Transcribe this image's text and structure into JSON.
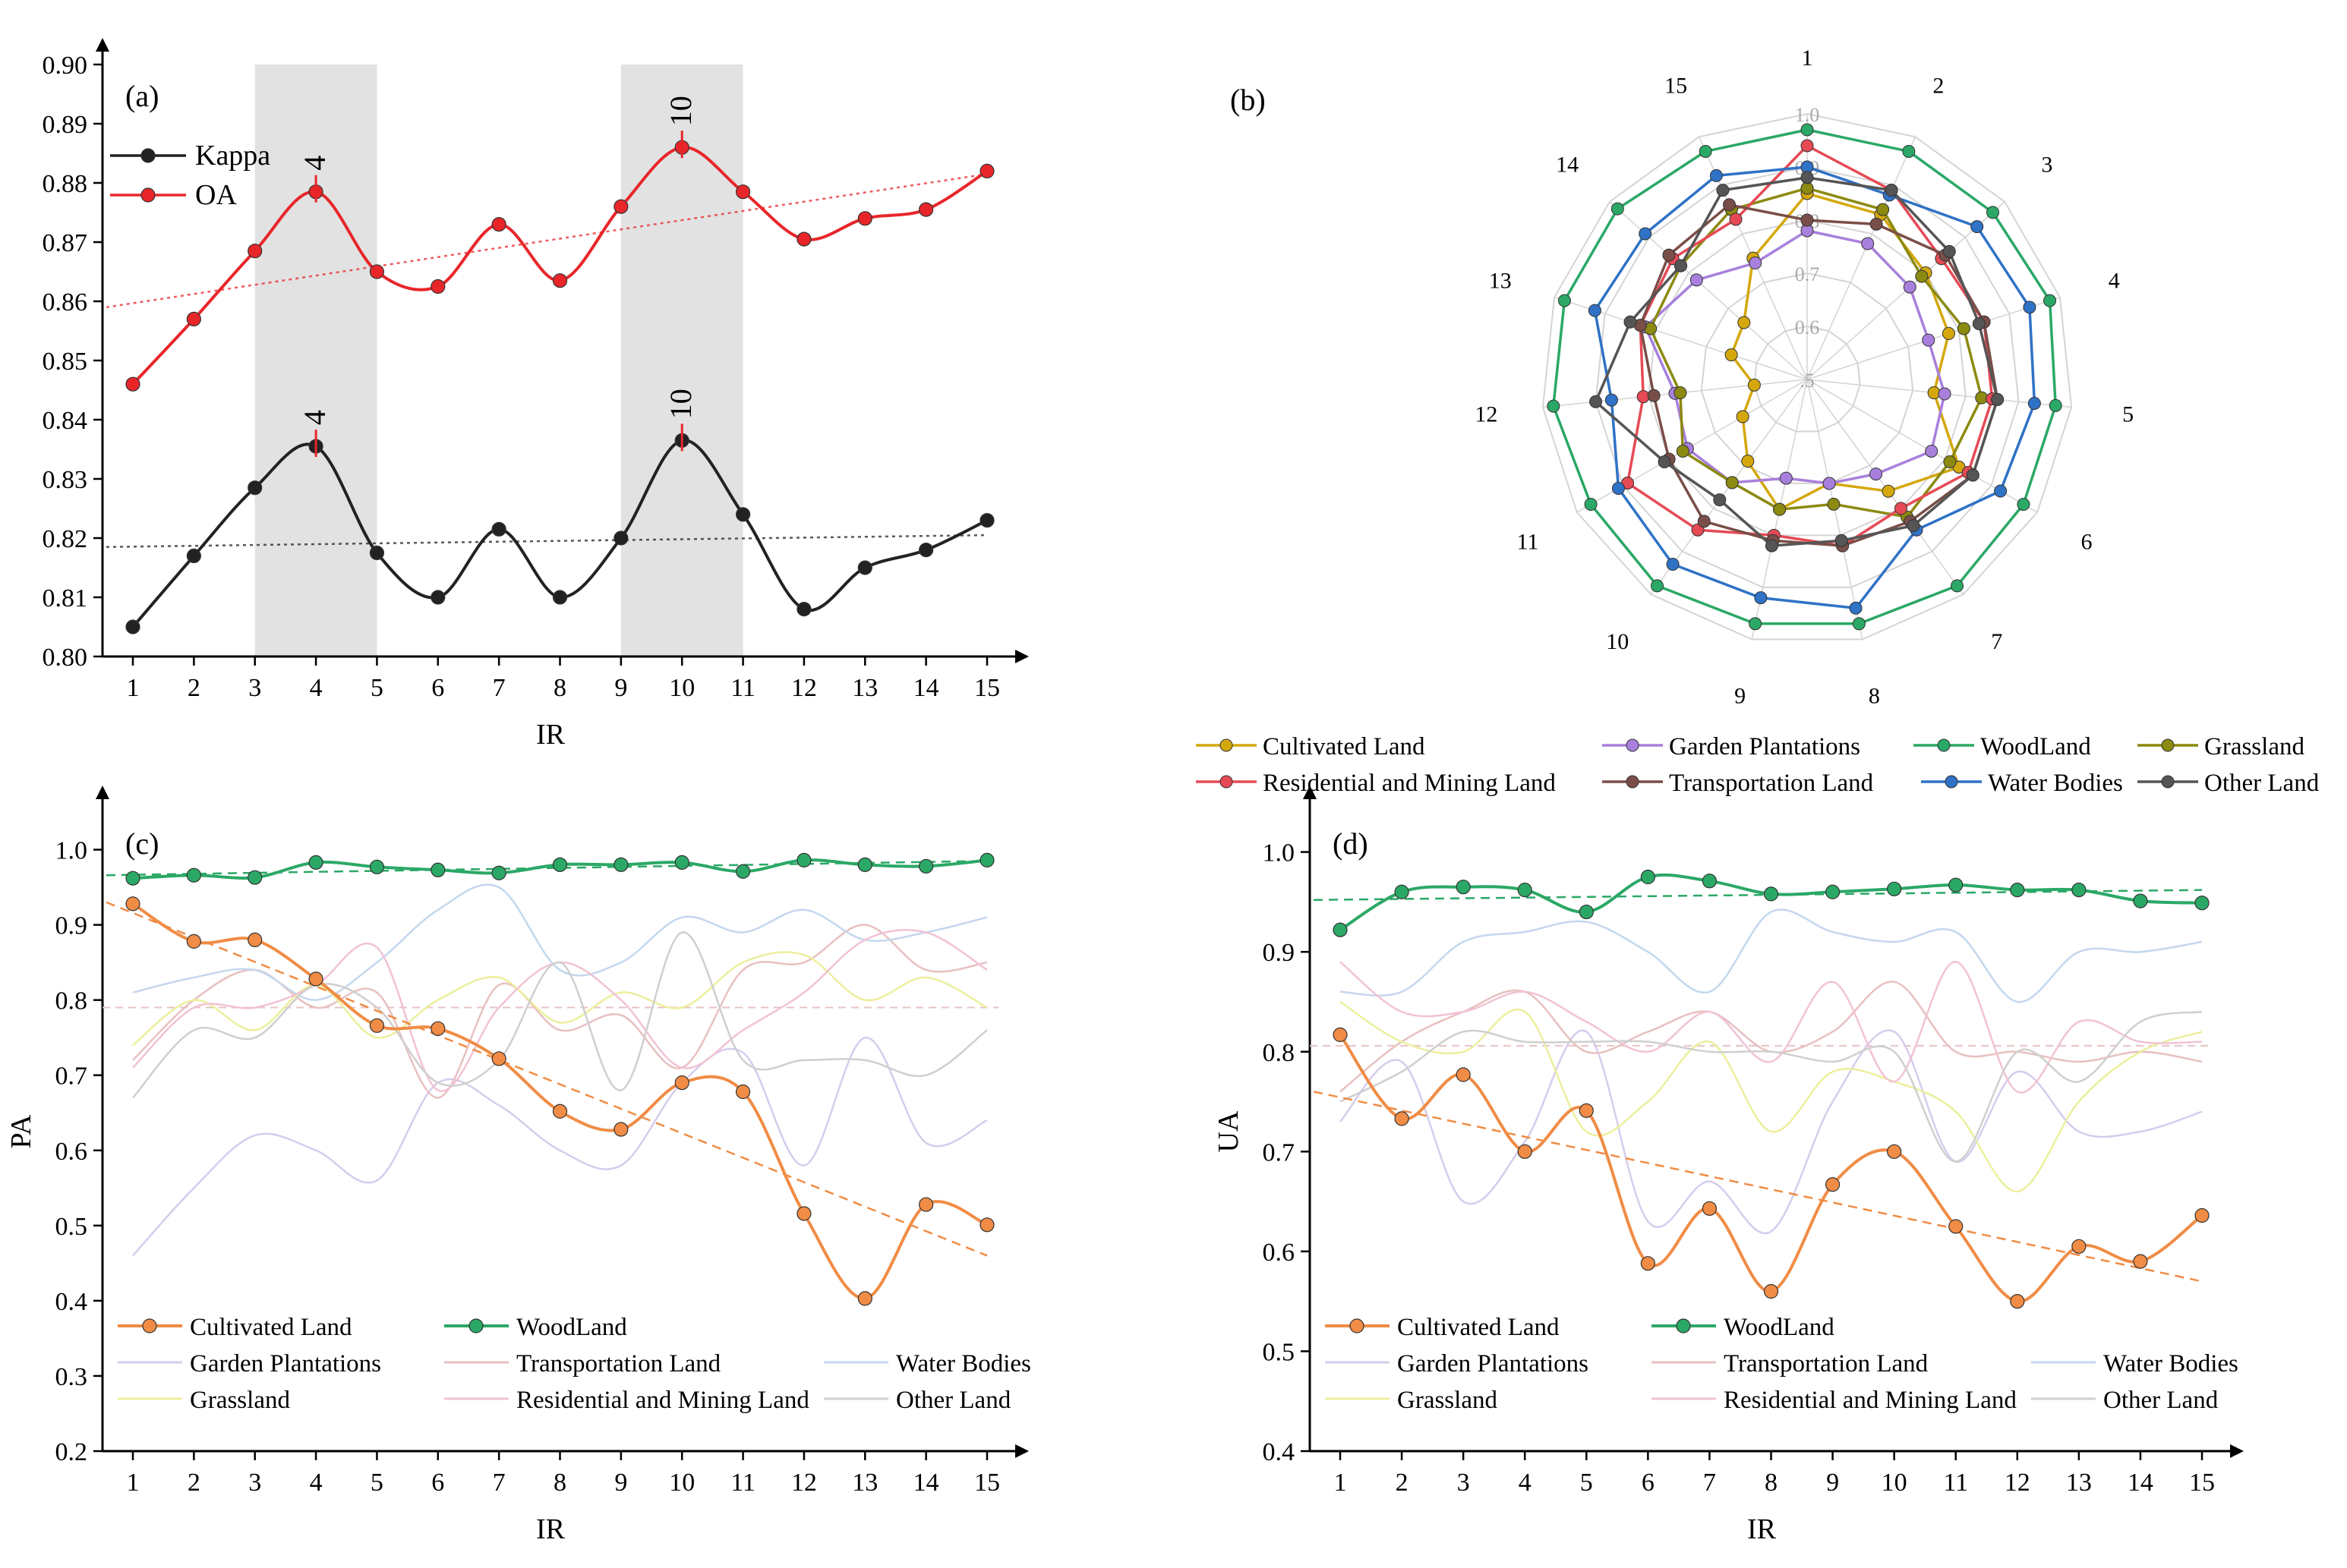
{
  "chart_data": [
    {
      "id": "a",
      "type": "line",
      "panel_label": "(a)",
      "xlabel": "IR",
      "ylabel": "",
      "x": [
        1,
        2,
        3,
        4,
        5,
        6,
        7,
        8,
        9,
        10,
        11,
        12,
        13,
        14,
        15
      ],
      "ylim": [
        0.8,
        0.9
      ],
      "yticks": [
        "0.80",
        "0.81",
        "0.82",
        "0.83",
        "0.84",
        "0.85",
        "0.86",
        "0.87",
        "0.88",
        "0.89",
        "0.90"
      ],
      "shaded_regions": [
        [
          3,
          5
        ],
        [
          9,
          11
        ]
      ],
      "series": [
        {
          "name": "Kappa",
          "color": "#222222",
          "values": [
            0.805,
            0.817,
            0.8285,
            0.8355,
            0.8175,
            0.81,
            0.8215,
            0.81,
            0.82,
            0.8365,
            0.824,
            0.808,
            0.815,
            0.818,
            0.823
          ],
          "trend": [
            0.8185,
            0.8205
          ]
        },
        {
          "name": "OA",
          "color": "#e8262a",
          "values": [
            0.846,
            0.857,
            0.8685,
            0.8785,
            0.865,
            0.8625,
            0.873,
            0.8635,
            0.876,
            0.886,
            0.8785,
            0.8705,
            0.874,
            0.8755,
            0.882
          ],
          "trend": [
            0.859,
            0.8815
          ]
        }
      ],
      "annotations": [
        {
          "series": "OA",
          "x": 4,
          "text": "4"
        },
        {
          "series": "OA",
          "x": 10,
          "text": "10"
        },
        {
          "series": "Kappa",
          "x": 4,
          "text": "4"
        },
        {
          "series": "Kappa",
          "x": 10,
          "text": "10"
        }
      ]
    },
    {
      "id": "b",
      "type": "radar",
      "panel_label": "(b)",
      "axes": [
        "1",
        "2",
        "3",
        "4",
        "5",
        "6",
        "7",
        "8",
        "9",
        "10",
        "11",
        "12",
        "13",
        "14",
        "15"
      ],
      "rlim": [
        0.5,
        1.0
      ],
      "rticks": [
        ".5",
        "0.6",
        "0.7",
        "0.8",
        "0.9",
        "1.0"
      ],
      "series": [
        {
          "name": "Cultivated Land",
          "color": "#d4a80d",
          "values": [
            0.85,
            0.84,
            0.8,
            0.78,
            0.74,
            0.83,
            0.76,
            0.7,
            0.75,
            0.69,
            0.64,
            0.6,
            0.65,
            0.66,
            0.75
          ]
        },
        {
          "name": "Garden Plantations",
          "color": "#a880dc",
          "values": [
            0.78,
            0.78,
            0.76,
            0.74,
            0.76,
            0.77,
            0.72,
            0.7,
            0.69,
            0.74,
            0.76,
            0.75,
            0.82,
            0.78,
            0.74
          ]
        },
        {
          "name": "WoodLand",
          "color": "#2ba866",
          "values": [
            0.97,
            0.97,
            0.97,
            0.98,
            0.97,
            0.97,
            0.98,
            0.97,
            0.97,
            0.98,
            0.97,
            0.98,
            0.98,
            0.98,
            0.97
          ]
        },
        {
          "name": "Grassland",
          "color": "#8c8a10",
          "values": [
            0.86,
            0.85,
            0.79,
            0.81,
            0.83,
            0.81,
            0.82,
            0.74,
            0.75,
            0.74,
            0.77,
            0.74,
            0.81,
            0.82,
            0.85
          ]
        },
        {
          "name": "Residential and Mining Land",
          "color": "#e64a55",
          "values": [
            0.94,
            0.89,
            0.84,
            0.85,
            0.85,
            0.85,
            0.8,
            0.82,
            0.8,
            0.85,
            0.89,
            0.81,
            0.83,
            0.84,
            0.83
          ]
        },
        {
          "name": "Transportation Land",
          "color": "#7a4e48",
          "values": [
            0.8,
            0.82,
            0.85,
            0.85,
            0.86,
            0.86,
            0.83,
            0.82,
            0.81,
            0.83,
            0.8,
            0.79,
            0.83,
            0.85,
            0.86
          ]
        },
        {
          "name": "Water Bodies",
          "color": "#2f72c6",
          "values": [
            0.9,
            0.88,
            0.93,
            0.94,
            0.93,
            0.92,
            0.85,
            0.94,
            0.92,
            0.93,
            0.91,
            0.87,
            0.92,
            0.91,
            0.92
          ]
        },
        {
          "name": "Other Land",
          "color": "#555555",
          "values": [
            0.88,
            0.89,
            0.86,
            0.84,
            0.86,
            0.86,
            0.84,
            0.81,
            0.82,
            0.78,
            0.81,
            0.9,
            0.85,
            0.82,
            0.89
          ]
        }
      ],
      "legend_order": [
        "Cultivated Land",
        "Garden Plantations",
        "WoodLand",
        "Grassland",
        "Residential and Mining Land",
        "Transportation Land",
        "Water Bodies",
        "Other Land"
      ]
    },
    {
      "id": "c",
      "type": "line",
      "panel_label": "(c)",
      "xlabel": "IR",
      "ylabel": "PA",
      "x": [
        1,
        2,
        3,
        4,
        5,
        6,
        7,
        8,
        9,
        10,
        11,
        12,
        13,
        14,
        15
      ],
      "ylim": [
        0.2,
        1.05
      ],
      "yticks": [
        "0.2",
        "0.3",
        "0.4",
        "0.5",
        "0.6",
        "0.7",
        "0.8",
        "0.9",
        "1.0"
      ],
      "series": [
        {
          "name": "Cultivated Land",
          "color": "#f08c45",
          "highlight": true,
          "values": [
            0.928,
            0.878,
            0.88,
            0.828,
            0.766,
            0.762,
            0.722,
            0.652,
            0.628,
            0.69,
            0.678,
            0.516,
            0.403,
            0.528,
            0.501
          ],
          "trend": [
            0.93,
            0.46
          ]
        },
        {
          "name": "WoodLand",
          "color": "#2ba866",
          "highlight": true,
          "values": [
            0.962,
            0.966,
            0.963,
            0.983,
            0.977,
            0.973,
            0.969,
            0.98,
            0.98,
            0.983,
            0.971,
            0.986,
            0.98,
            0.978,
            0.986
          ],
          "trend": [
            0.966,
            0.985
          ]
        },
        {
          "name": "Garden Plantations",
          "color": "#d6ccec",
          "values": [
            0.46,
            0.55,
            0.62,
            0.6,
            0.56,
            0.69,
            0.66,
            0.6,
            0.58,
            0.69,
            0.73,
            0.58,
            0.75,
            0.61,
            0.64
          ]
        },
        {
          "name": "Transportation Land",
          "color": "#e8c0c0",
          "values": [
            0.72,
            0.8,
            0.84,
            0.79,
            0.81,
            0.67,
            0.82,
            0.76,
            0.78,
            0.71,
            0.84,
            0.85,
            0.9,
            0.84,
            0.85
          ]
        },
        {
          "name": "Water Bodies",
          "color": "#c4d7ee",
          "values": [
            0.81,
            0.83,
            0.84,
            0.8,
            0.85,
            0.92,
            0.95,
            0.84,
            0.85,
            0.91,
            0.89,
            0.92,
            0.88,
            0.89,
            0.91
          ]
        },
        {
          "name": "Grassland",
          "color": "#ecef9c",
          "values": [
            0.74,
            0.8,
            0.76,
            0.82,
            0.75,
            0.8,
            0.83,
            0.77,
            0.81,
            0.79,
            0.85,
            0.86,
            0.8,
            0.83,
            0.79
          ]
        },
        {
          "name": "Residential and Mining Land",
          "color": "#f2c2d4",
          "values": [
            0.71,
            0.79,
            0.79,
            0.82,
            0.87,
            0.68,
            0.79,
            0.85,
            0.8,
            0.71,
            0.76,
            0.81,
            0.88,
            0.89,
            0.84
          ]
        },
        {
          "name": "Other Land",
          "color": "#cfcfcf",
          "values": [
            0.67,
            0.76,
            0.75,
            0.82,
            0.79,
            0.69,
            0.72,
            0.85,
            0.68,
            0.89,
            0.72,
            0.72,
            0.72,
            0.7,
            0.76
          ]
        }
      ],
      "mean_line": 0.79,
      "legend_order": [
        "Cultivated Land",
        "WoodLand",
        "Garden Plantations",
        "Transportation Land",
        "Water Bodies",
        "Grassland",
        "Residential and Mining Land",
        "Other Land"
      ]
    },
    {
      "id": "d",
      "type": "line",
      "panel_label": "(d)",
      "xlabel": "IR",
      "ylabel": "UA",
      "x": [
        1,
        2,
        3,
        4,
        5,
        6,
        7,
        8,
        9,
        10,
        11,
        12,
        13,
        14,
        15
      ],
      "ylim": [
        0.4,
        1.04
      ],
      "yticks": [
        "0.4",
        "0.5",
        "0.6",
        "0.7",
        "0.8",
        "0.9",
        "1.0"
      ],
      "series": [
        {
          "name": "Cultivated Land",
          "color": "#f08c45",
          "highlight": true,
          "values": [
            0.817,
            0.733,
            0.777,
            0.7,
            0.741,
            0.588,
            0.643,
            0.56,
            0.667,
            0.7,
            0.625,
            0.55,
            0.605,
            0.59,
            0.636
          ],
          "trend": [
            0.76,
            0.57
          ]
        },
        {
          "name": "WoodLand",
          "color": "#2ba866",
          "highlight": true,
          "values": [
            0.922,
            0.96,
            0.965,
            0.962,
            0.94,
            0.975,
            0.971,
            0.958,
            0.96,
            0.963,
            0.967,
            0.962,
            0.962,
            0.951,
            0.949
          ],
          "trend": [
            0.952,
            0.962
          ]
        },
        {
          "name": "Garden Plantations",
          "color": "#d6ccec",
          "values": [
            0.73,
            0.79,
            0.65,
            0.71,
            0.82,
            0.63,
            0.67,
            0.62,
            0.75,
            0.82,
            0.69,
            0.78,
            0.72,
            0.72,
            0.74
          ]
        },
        {
          "name": "Transportation Land",
          "color": "#e8c0c0",
          "values": [
            0.76,
            0.81,
            0.84,
            0.86,
            0.8,
            0.82,
            0.84,
            0.8,
            0.82,
            0.87,
            0.8,
            0.8,
            0.79,
            0.8,
            0.79
          ]
        },
        {
          "name": "Water Bodies",
          "color": "#c4d7ee",
          "values": [
            0.86,
            0.86,
            0.91,
            0.92,
            0.93,
            0.9,
            0.86,
            0.94,
            0.92,
            0.91,
            0.92,
            0.85,
            0.9,
            0.9,
            0.91
          ]
        },
        {
          "name": "Grassland",
          "color": "#ecef9c",
          "values": [
            0.85,
            0.81,
            0.8,
            0.84,
            0.72,
            0.75,
            0.81,
            0.72,
            0.78,
            0.77,
            0.74,
            0.66,
            0.75,
            0.8,
            0.82
          ]
        },
        {
          "name": "Residential and Mining Land",
          "color": "#f2c2d4",
          "values": [
            0.89,
            0.84,
            0.84,
            0.86,
            0.83,
            0.8,
            0.84,
            0.79,
            0.87,
            0.77,
            0.89,
            0.76,
            0.83,
            0.81,
            0.81
          ]
        },
        {
          "name": "Other Land",
          "color": "#cfcfcf",
          "values": [
            0.75,
            0.78,
            0.82,
            0.81,
            0.81,
            0.81,
            0.8,
            0.8,
            0.79,
            0.8,
            0.69,
            0.8,
            0.77,
            0.83,
            0.84
          ]
        }
      ],
      "mean_line": 0.806,
      "legend_order": [
        "Cultivated Land",
        "WoodLand",
        "Garden Plantations",
        "Transportation Land",
        "Water Bodies",
        "Grassland",
        "Residential and Mining Land",
        "Other Land"
      ]
    }
  ]
}
